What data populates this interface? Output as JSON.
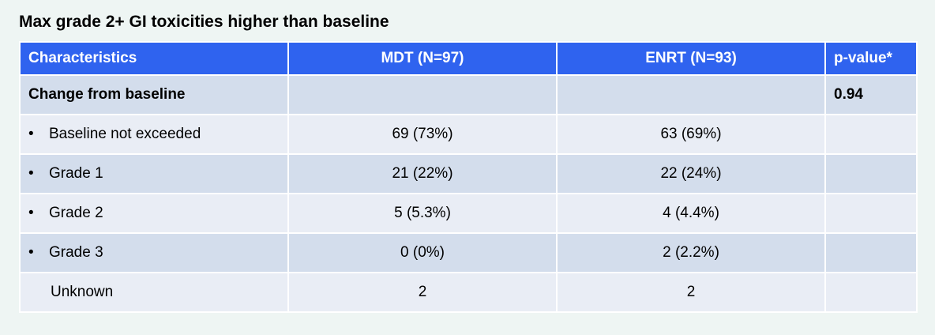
{
  "title": "Max grade 2+ GI toxicities higher than baseline",
  "table": {
    "header": [
      "Characteristics",
      "MDT (N=97)",
      "ENRT (N=93)",
      "p-value*"
    ],
    "rows": [
      [
        "Change from baseline",
        "",
        "",
        "0.94"
      ],
      [
        "Baseline not exceeded",
        "69 (73%)",
        "63 (69%)",
        ""
      ],
      [
        "Grade 1",
        "21 (22%)",
        "22 (24%)",
        ""
      ],
      [
        "Grade 2",
        "5 (5.3%)",
        "4 (4.4%)",
        ""
      ],
      [
        "Grade 3",
        "0 (0%)",
        "2 (2.2%)",
        ""
      ],
      [
        "Unknown",
        "2",
        "2",
        ""
      ]
    ]
  }
}
